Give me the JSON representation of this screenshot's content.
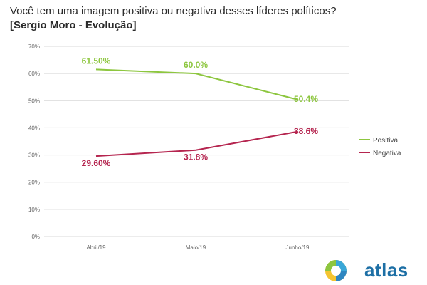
{
  "title": "Você tem uma imagem positiva ou negativa desses líderes políticos?",
  "subtitle": "[Sergio Moro - Evolução]",
  "logo": {
    "name": "atlas-logo",
    "text": "atlas"
  },
  "chart_data": {
    "type": "line",
    "categories": [
      "Abril/19",
      "Maio/19",
      "Junho/19"
    ],
    "ylim": [
      0,
      70
    ],
    "yticks": [
      "0%",
      "10%",
      "20%",
      "30%",
      "40%",
      "50%",
      "60%",
      "70%"
    ],
    "grid": true,
    "legend_position": "right",
    "series": [
      {
        "name": "Positiva",
        "color": "#8dc63f",
        "values": [
          61.5,
          60.0,
          50.4
        ],
        "labels": [
          "61.50%",
          "60.0%",
          "50.4%"
        ]
      },
      {
        "name": "Negativa",
        "color": "#b5254f",
        "values": [
          29.6,
          31.8,
          38.6
        ],
        "labels": [
          "29.60%",
          "31.8%",
          "38.6%"
        ]
      }
    ]
  }
}
